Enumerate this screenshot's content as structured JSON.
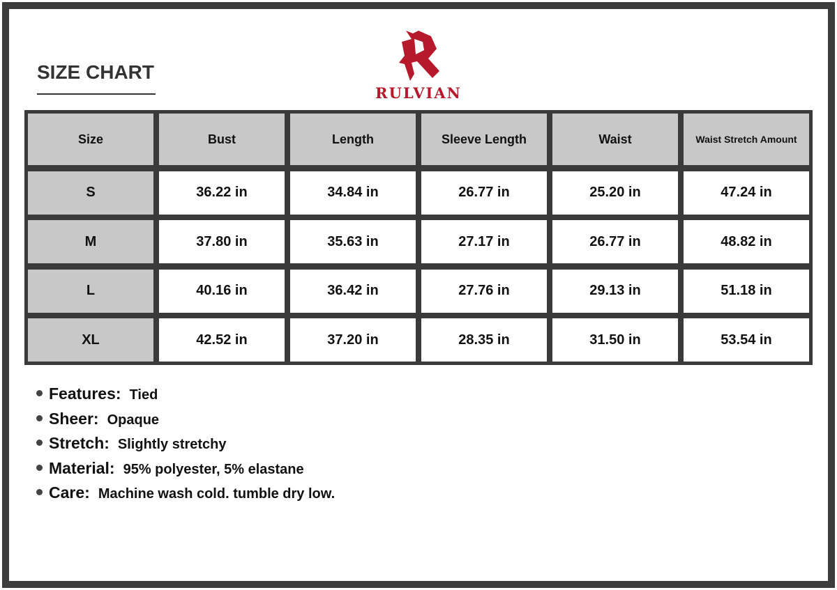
{
  "title": "SIZE CHART",
  "brand": {
    "name": "RULVIAN",
    "color": "#b5192b"
  },
  "table": {
    "headers": [
      "Size",
      "Bust",
      "Length",
      "Sleeve Length",
      "Waist",
      "Waist Stretch Amount"
    ],
    "rows": [
      [
        "S",
        "36.22 in",
        "34.84 in",
        "26.77 in",
        "25.20 in",
        "47.24 in"
      ],
      [
        "M",
        "37.80 in",
        "35.63 in",
        "27.17 in",
        "26.77 in",
        "48.82 in"
      ],
      [
        "L",
        "40.16 in",
        "36.42 in",
        "27.76 in",
        "29.13 in",
        "51.18 in"
      ],
      [
        "XL",
        "42.52 in",
        "37.20 in",
        "28.35 in",
        "31.50 in",
        "53.54 in"
      ]
    ]
  },
  "features": [
    {
      "label": "Features:",
      "value": "Tied"
    },
    {
      "label": "Sheer:",
      "value": "Opaque"
    },
    {
      "label": "Stretch:",
      "value": "Slightly stretchy"
    },
    {
      "label": "Material:",
      "value": "95% polyester, 5% elastane"
    },
    {
      "label": "Care:",
      "value": "Machine wash cold. tumble dry low."
    }
  ]
}
